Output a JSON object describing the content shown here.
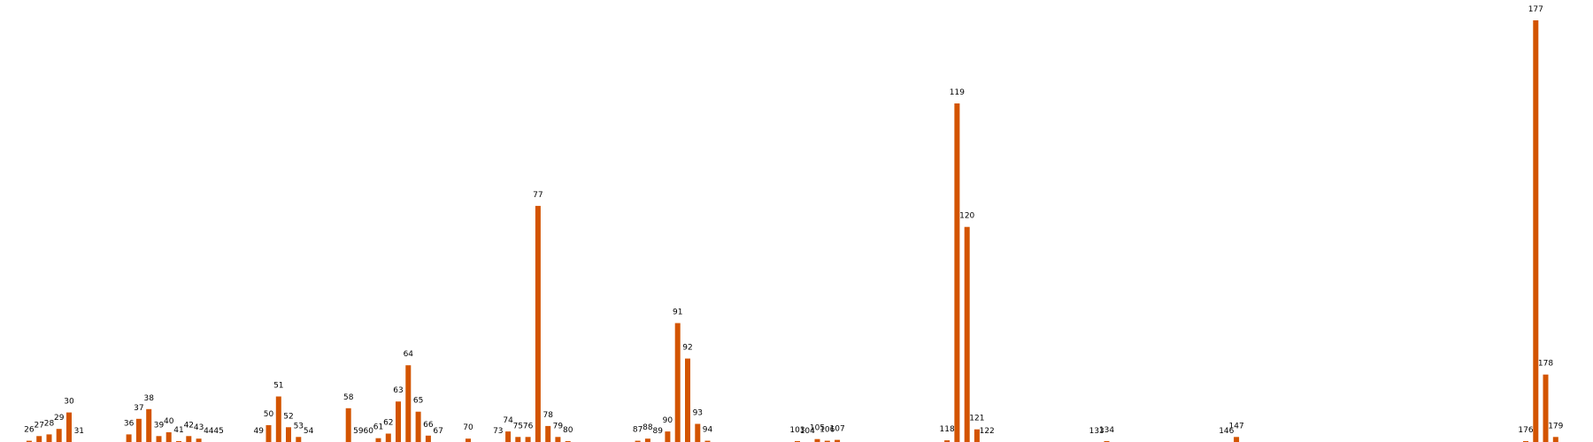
{
  "chart_data": {
    "type": "bar",
    "title": "",
    "xlabel": "",
    "ylabel": "",
    "bar_color": "#d35400",
    "background": "#ffffff",
    "grid": false,
    "axes_visible": false,
    "xlim": [
      24.5,
      181.5
    ],
    "ylim": [
      0,
      100
    ],
    "categories": [
      26,
      27,
      28,
      29,
      30,
      31,
      36,
      37,
      38,
      39,
      40,
      41,
      42,
      43,
      44,
      45,
      49,
      50,
      51,
      52,
      53,
      54,
      58,
      59,
      60,
      61,
      62,
      63,
      64,
      65,
      66,
      67,
      70,
      73,
      74,
      75,
      76,
      77,
      78,
      79,
      80,
      87,
      88,
      89,
      90,
      91,
      92,
      93,
      94,
      103,
      104,
      105,
      106,
      107,
      118,
      119,
      120,
      121,
      122,
      133,
      134,
      146,
      147,
      176,
      177,
      178,
      179
    ],
    "labels": [
      "26",
      "27",
      "28",
      "29",
      "30",
      "31",
      "36",
      "37",
      "38",
      "39",
      "40",
      "41",
      "42",
      "43",
      "44",
      "45",
      "49",
      "50",
      "51",
      "52",
      "53",
      "54",
      "58",
      "59",
      "60",
      "61",
      "62",
      "63",
      "64",
      "65",
      "66",
      "67",
      "70",
      "73",
      "74",
      "75",
      "76",
      "77",
      "78",
      "79",
      "80",
      "87",
      "88",
      "89",
      "90",
      "91",
      "92",
      "93",
      "94",
      "103",
      "104",
      "105",
      "106",
      "107",
      "118",
      "119",
      "120",
      "121",
      "122",
      "133",
      "134",
      "146",
      "147",
      "176",
      "177",
      "178",
      "179"
    ],
    "values": [
      0.3,
      1.4,
      1.8,
      3.1,
      7.0,
      0.0,
      1.8,
      5.5,
      7.8,
      1.4,
      2.3,
      0.2,
      1.4,
      0.8,
      0.0,
      0.0,
      0.0,
      4.0,
      10.8,
      3.5,
      1.2,
      0.0,
      8.0,
      0.0,
      0.0,
      0.9,
      2.0,
      9.6,
      18.2,
      7.2,
      1.5,
      0.0,
      0.8,
      0.0,
      2.5,
      1.2,
      1.2,
      56.0,
      3.8,
      1.2,
      0.2,
      0.3,
      0.8,
      0.0,
      2.5,
      28.2,
      19.8,
      4.3,
      0.3,
      0.2,
      0.0,
      0.7,
      0.3,
      0.5,
      0.4,
      80.3,
      51.0,
      3.0,
      0.0,
      0.0,
      0.2,
      0.0,
      1.2,
      0.2,
      100.0,
      16.0,
      1.2
    ]
  }
}
